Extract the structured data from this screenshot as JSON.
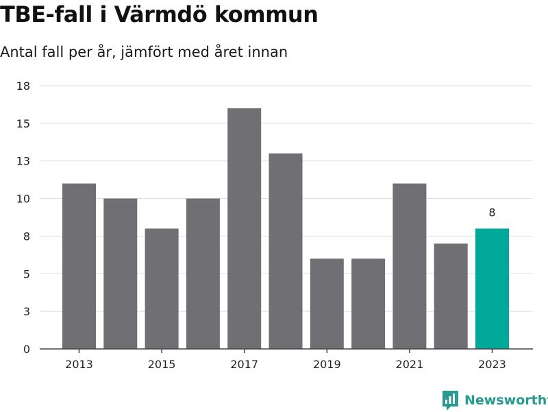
{
  "header": {
    "title": "TBE-fall i Värmdö kommun",
    "subtitle": "Antal fall per år, jämfört med året innan"
  },
  "brand": {
    "name": "Newsworthy",
    "icon": "newsworthy-logo-icon",
    "color": "#2a9a90"
  },
  "colors": {
    "bar": "#6f6f74",
    "highlight": "#00a89a",
    "grid": "#dddddd",
    "axis": "#444444"
  },
  "chart_data": {
    "type": "bar",
    "categories": [
      "2013",
      "2014",
      "2015",
      "2016",
      "2017",
      "2018",
      "2019",
      "2020",
      "2021",
      "2022",
      "2023"
    ],
    "values": [
      11,
      10,
      8,
      10,
      16,
      13,
      6,
      6,
      11,
      7,
      8
    ],
    "highlight_index": 10,
    "data_labels": [
      {
        "index": 10,
        "text": "8"
      }
    ],
    "x_tick_labels": [
      "2013",
      "2015",
      "2017",
      "2019",
      "2021",
      "2023"
    ],
    "y_tick_labels": [
      "0",
      "3",
      "5",
      "8",
      "10",
      "13",
      "15",
      "18"
    ],
    "ylim": [
      0,
      17.5
    ],
    "grid": true,
    "title": "TBE-fall i Värmdö kommun",
    "subtitle": "Antal fall per år, jämfört med året innan"
  }
}
